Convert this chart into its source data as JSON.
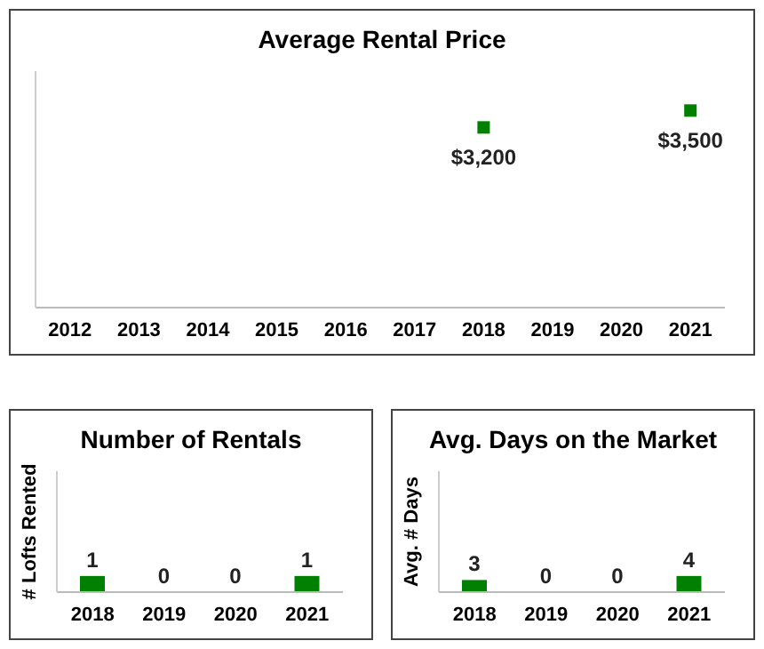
{
  "chart_data": [
    {
      "type": "scatter",
      "title": "Average Rental Price",
      "categories": [
        "2012",
        "2013",
        "2014",
        "2015",
        "2016",
        "2017",
        "2018",
        "2019",
        "2020",
        "2021"
      ],
      "series": [
        {
          "color": "#008000",
          "values": [
            null,
            null,
            null,
            null,
            null,
            null,
            3200,
            null,
            null,
            3500
          ],
          "value_labels": [
            null,
            null,
            null,
            null,
            null,
            null,
            "$3,200",
            null,
            null,
            "$3,500"
          ]
        }
      ],
      "marker": "square",
      "grid": false,
      "legend": false,
      "tick_labels": "x"
    },
    {
      "type": "bar",
      "title": "Number of Rentals",
      "ylabel": "# Lofts Rented",
      "categories": [
        "2018",
        "2019",
        "2020",
        "2021"
      ],
      "series": [
        {
          "color": "#008000",
          "values": [
            1,
            0,
            0,
            1
          ]
        }
      ],
      "data_labels": true,
      "grid": false,
      "legend": false,
      "tick_labels": "x"
    },
    {
      "type": "bar",
      "title": "Avg. Days on the Market",
      "ylabel": "Avg. # Days",
      "categories": [
        "2018",
        "2019",
        "2020",
        "2021"
      ],
      "series": [
        {
          "color": "#008000",
          "values": [
            3,
            0,
            0,
            4
          ]
        }
      ],
      "data_labels": true,
      "grid": false,
      "legend": false,
      "tick_labels": "x"
    }
  ]
}
